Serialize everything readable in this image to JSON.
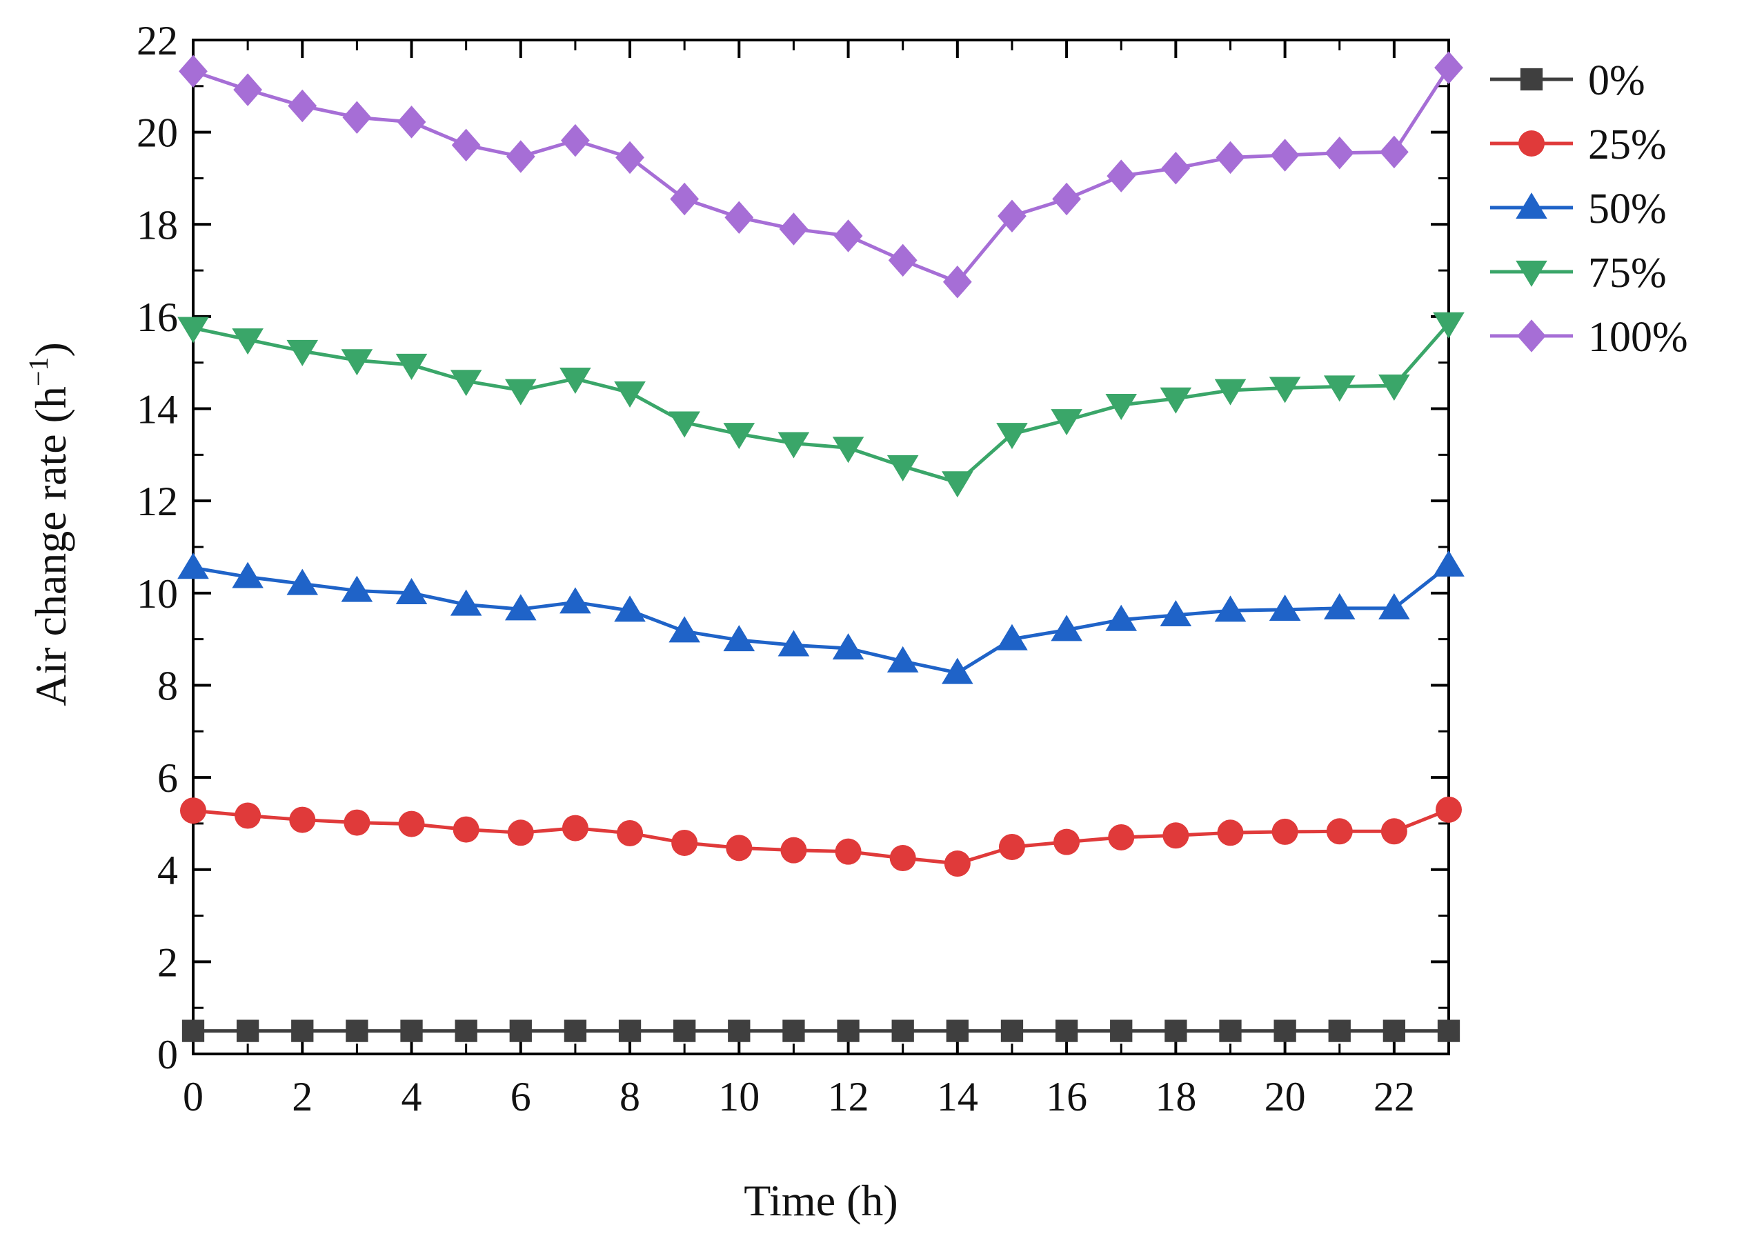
{
  "chart_data": {
    "type": "line",
    "title": "",
    "xlabel": "Time (h)",
    "ylabel_main": "Air change rate (h",
    "ylabel_sup": "−1",
    "ylabel_close": ")",
    "xlim": [
      0,
      23
    ],
    "ylim": [
      0,
      22
    ],
    "xticks": [
      0,
      2,
      4,
      6,
      8,
      10,
      12,
      14,
      16,
      18,
      20,
      22
    ],
    "yticks": [
      0,
      2,
      4,
      6,
      8,
      10,
      12,
      14,
      16,
      18,
      20,
      22
    ],
    "legend_position": "right-outside-top",
    "x": [
      0,
      1,
      2,
      3,
      4,
      5,
      6,
      7,
      8,
      9,
      10,
      11,
      12,
      13,
      14,
      15,
      16,
      17,
      18,
      19,
      20,
      21,
      22,
      23
    ],
    "series": [
      {
        "name": "0%",
        "color": "#3f3f3f",
        "marker": "square",
        "values": [
          0.5,
          0.5,
          0.5,
          0.5,
          0.5,
          0.5,
          0.5,
          0.5,
          0.5,
          0.5,
          0.5,
          0.5,
          0.5,
          0.5,
          0.5,
          0.5,
          0.5,
          0.5,
          0.5,
          0.5,
          0.5,
          0.5,
          0.5,
          0.5
        ]
      },
      {
        "name": "25%",
        "color": "#e03a3a",
        "marker": "circle",
        "values": [
          5.28,
          5.17,
          5.08,
          5.02,
          4.99,
          4.87,
          4.8,
          4.9,
          4.79,
          4.58,
          4.47,
          4.42,
          4.39,
          4.25,
          4.13,
          4.49,
          4.6,
          4.7,
          4.74,
          4.8,
          4.82,
          4.83,
          4.83,
          5.3
        ]
      },
      {
        "name": "50%",
        "color": "#1f63c8",
        "marker": "triangle-up",
        "values": [
          10.55,
          10.35,
          10.2,
          10.05,
          10.0,
          9.75,
          9.65,
          9.8,
          9.62,
          9.17,
          8.98,
          8.87,
          8.8,
          8.52,
          8.27,
          9.0,
          9.2,
          9.42,
          9.52,
          9.62,
          9.64,
          9.67,
          9.67,
          10.6
        ]
      },
      {
        "name": "75%",
        "color": "#3aa669",
        "marker": "triangle-down",
        "values": [
          15.75,
          15.5,
          15.25,
          15.05,
          14.95,
          14.6,
          14.4,
          14.65,
          14.35,
          13.7,
          13.45,
          13.25,
          13.15,
          12.75,
          12.4,
          13.45,
          13.75,
          14.08,
          14.22,
          14.4,
          14.45,
          14.48,
          14.5,
          15.85
        ]
      },
      {
        "name": "100%",
        "color": "#a66ed6",
        "marker": "diamond",
        "values": [
          21.32,
          20.92,
          20.57,
          20.32,
          20.22,
          19.72,
          19.47,
          19.82,
          19.45,
          18.55,
          18.15,
          17.9,
          17.75,
          17.22,
          16.75,
          18.18,
          18.55,
          19.05,
          19.22,
          19.45,
          19.5,
          19.55,
          19.57,
          21.4
        ]
      }
    ]
  }
}
